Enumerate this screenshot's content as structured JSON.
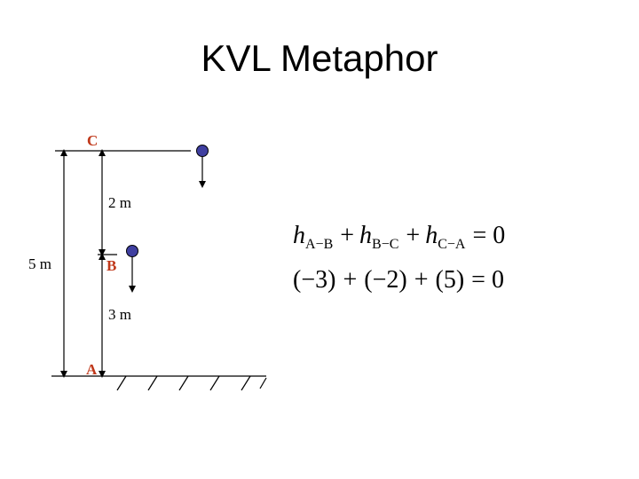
{
  "title": "KVL Metaphor",
  "points": [
    {
      "label": "C",
      "color": "#c0391b"
    },
    {
      "label": "B",
      "color": "#c0391b"
    },
    {
      "label": "A",
      "color": "#c0391b"
    }
  ],
  "measurements": {
    "total": "5 m",
    "upper": "2 m",
    "lower": "3 m"
  },
  "equations": {
    "line1": {
      "h": "h",
      "sub1": "A−B",
      "sub2": "B−C",
      "sub3": "C−A",
      "plus": "+",
      "equals": "= 0"
    },
    "line2": {
      "t1": "(−3)",
      "t2": "(−2)",
      "t3": "(5)",
      "plus": "+",
      "equals": "= 0"
    }
  },
  "colors": {
    "ball": "#3f3fa0",
    "point_label": "#c0391b"
  }
}
